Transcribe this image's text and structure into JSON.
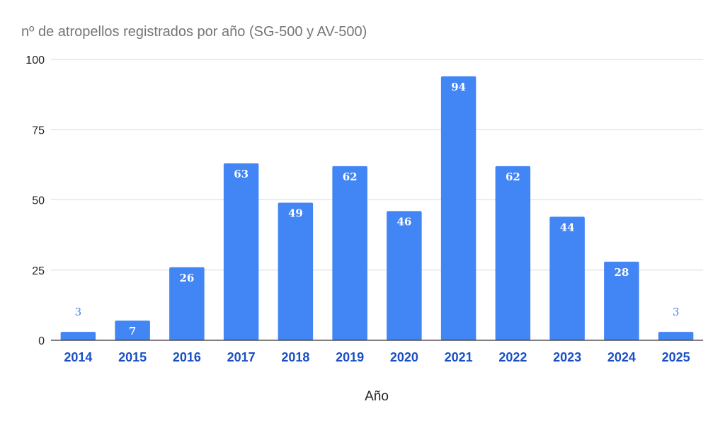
{
  "chart_data": {
    "type": "bar",
    "title": "nº de atropellos registrados por año (SG-500 y AV-500)",
    "xlabel": "Año",
    "ylabel": "",
    "categories": [
      "2014",
      "2015",
      "2016",
      "2017",
      "2018",
      "2019",
      "2020",
      "2021",
      "2022",
      "2023",
      "2024",
      "2025"
    ],
    "values": [
      3,
      7,
      26,
      63,
      49,
      62,
      46,
      94,
      62,
      44,
      28,
      3
    ],
    "ylim": [
      0,
      100
    ],
    "yticks": [
      "0",
      "25",
      "50",
      "75",
      "100"
    ],
    "grid": true,
    "legend": "none",
    "colors": {
      "bar": "#4285f4",
      "grid": "#d9d9d9",
      "axis": "#333333",
      "xtick": "#1a4fc4",
      "label_inside": "#ffffff",
      "label_outside": "#4285f4"
    }
  }
}
